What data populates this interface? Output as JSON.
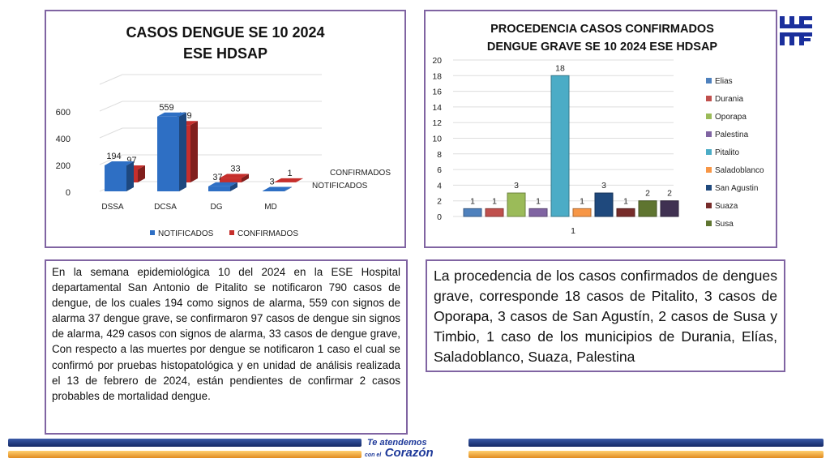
{
  "chart_data": [
    {
      "type": "bar",
      "title": [
        "CASOS DENGUE SE 10 2024",
        "ESE HDSAP"
      ],
      "categories": [
        "DSSA",
        "DCSA",
        "DG",
        "MD"
      ],
      "series": [
        {
          "name": "NOTIFICADOS",
          "values": [
            194,
            559,
            37,
            3
          ],
          "color": "#2e6fc4"
        },
        {
          "name": "CONFIRMADOS",
          "values": [
            97,
            429,
            33,
            1
          ],
          "color": "#c62f2c"
        }
      ],
      "yticks": [
        0,
        200,
        400,
        600
      ],
      "ylim": [
        0,
        800
      ],
      "legend": "bottom",
      "grid": true
    },
    {
      "type": "bar",
      "title": [
        "PROCEDENCIA CASOS CONFIRMADOS",
        "DENGUE GRAVE SE 10 2024  ESE HDSAP"
      ],
      "categories": [
        "1"
      ],
      "series": [
        {
          "name": "Elias",
          "values": [
            1
          ],
          "color": "#4f81bd"
        },
        {
          "name": "Durania",
          "values": [
            1
          ],
          "color": "#c0504d"
        },
        {
          "name": "Oporapa",
          "values": [
            3
          ],
          "color": "#9bbb59"
        },
        {
          "name": "Palestina",
          "values": [
            1
          ],
          "color": "#8064a2"
        },
        {
          "name": "Pitalito",
          "values": [
            18
          ],
          "color": "#4bacc6"
        },
        {
          "name": "Saladoblanco",
          "values": [
            1
          ],
          "color": "#f79646"
        },
        {
          "name": "San Agustin",
          "values": [
            3
          ],
          "color": "#1f497d"
        },
        {
          "name": "Suaza",
          "values": [
            1
          ],
          "color": "#772c2a"
        },
        {
          "name": "Susa",
          "values": [
            2
          ],
          "color": "#5f7530"
        },
        {
          "name": "",
          "values": [
            2
          ],
          "color": "#403152"
        }
      ],
      "yticks": [
        0,
        2,
        4,
        6,
        8,
        10,
        12,
        14,
        16,
        18,
        20
      ],
      "ylim": [
        0,
        20
      ],
      "legend": "right",
      "grid": true
    }
  ],
  "text_left": "En la semana epidemiológica 10 del 2024 en la ESE Hospital departamental San Antonio de Pitalito se notificaron 790 casos de dengue, de los cuales 194 como signos de alarma, 559 con signos de alarma  37 dengue grave,  se confirmaron 97 casos de dengue sin signos de alarma, 429 casos con signos de alarma, 33 casos de dengue grave, Con respecto a las muertes por dengue se notificaron 1 caso el cual se confirmó por pruebas histopatológica y en unidad de análisis realizada el 13 de febrero de 2024, están pendientes de confirmar 2 casos probables de mortalidad dengue.",
  "text_right": "La procedencia de los casos confirmados de dengues grave, corresponde 18 casos de Pitalito, 3 casos de Oporapa, 3 casos de San Agustín, 2 casos de Susa y Timbio, 1 caso de los municipios de Durania, Elías, Saladoblanco, Suaza, Palestina",
  "footer": {
    "slogan_line1": "Te atendemos",
    "slogan_small": "con el",
    "slogan_line2": "Corazón"
  },
  "colors": {
    "border": "#8064a2",
    "navy": "#1f3a7a",
    "orange": "#f0a030"
  }
}
